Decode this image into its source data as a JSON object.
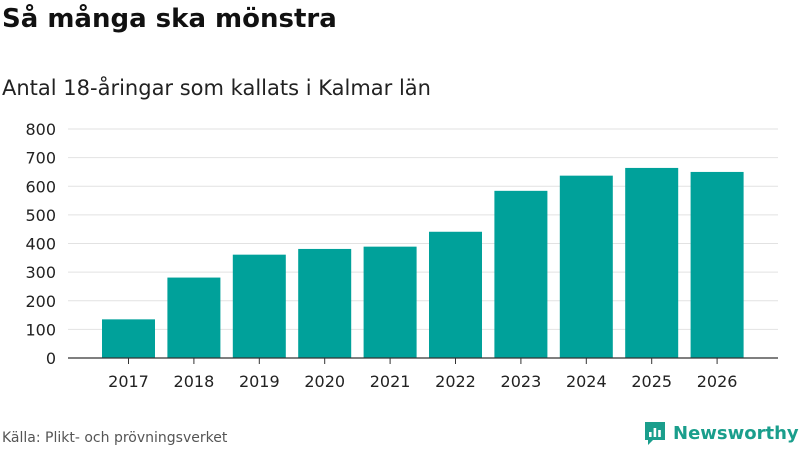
{
  "header": {
    "title": "Så många ska mönstra",
    "subtitle": "Antal 18-åringar som kallats i Kalmar län"
  },
  "footer": {
    "source": "Källa: Plikt- och prövningsverket",
    "brand": "Newsworthy",
    "logo_icon": "bar-chart-bubble-icon"
  },
  "colors": {
    "bar": "#00a19a",
    "grid": "#e2e2e2",
    "axis": "#333333",
    "brand": "#1a9e8c"
  },
  "chart_data": {
    "type": "bar",
    "title": "Så många ska mönstra",
    "subtitle": "Antal 18-åringar som kallats i Kalmar län",
    "categories": [
      "2017",
      "2018",
      "2019",
      "2020",
      "2021",
      "2022",
      "2023",
      "2024",
      "2025",
      "2026"
    ],
    "values": [
      135,
      281,
      361,
      381,
      389,
      441,
      584,
      637,
      664,
      650
    ],
    "xlabel": "",
    "ylabel": "",
    "ylim": [
      0,
      800
    ],
    "yticks": [
      "0",
      "100",
      "200",
      "300",
      "400",
      "500",
      "600",
      "700",
      "800"
    ],
    "grid": true,
    "legend": "none"
  }
}
